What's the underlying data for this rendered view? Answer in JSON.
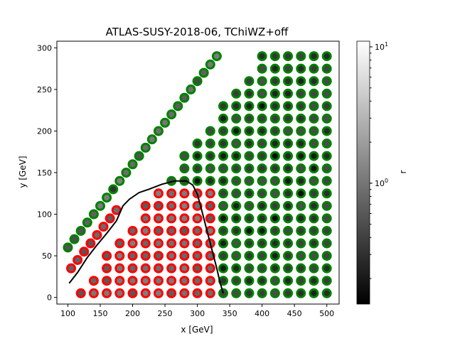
{
  "chart_data": {
    "type": "scatter",
    "title": "ATLAS-SUSY-2018-06, TChiWZ+off",
    "xlabel": "x [GeV]",
    "ylabel": "y [GeV]",
    "xlim": [
      83,
      519
    ],
    "ylim": [
      -8,
      308
    ],
    "xticks": [
      100,
      150,
      200,
      250,
      300,
      350,
      400,
      450,
      500
    ],
    "yticks": [
      0,
      50,
      100,
      150,
      200,
      250,
      300
    ],
    "grid": false,
    "colorbar": {
      "label": "r",
      "scale": "log",
      "range": [
        0.13,
        11
      ],
      "ticks": [
        {
          "value": 1,
          "label": "10^0"
        },
        {
          "value": 10,
          "label": "10^1"
        }
      ],
      "colormap": "gray",
      "colors": [
        "#000000",
        "#ffffff"
      ]
    },
    "edge_colors": {
      "excluded": "#ff0000",
      "allowed": "#008000"
    },
    "status_legend": {
      "excluded": "red ring",
      "allowed": "green ring"
    },
    "exclusion_curve": {
      "color": "#000000",
      "x": [
        102,
        115,
        130,
        145,
        160,
        175,
        185,
        195,
        210,
        225,
        245,
        265,
        283,
        293,
        300,
        305,
        310,
        315,
        320,
        325,
        330,
        335,
        340
      ],
      "y": [
        17,
        30,
        48,
        63,
        77,
        92,
        110,
        118,
        126,
        130,
        136,
        140,
        140,
        135,
        124,
        110,
        95,
        80,
        65,
        50,
        35,
        18,
        5
      ]
    },
    "points": {
      "grid_x": [
        120,
        140,
        160,
        180,
        200,
        220,
        240,
        260,
        280,
        300,
        320,
        340,
        360,
        380,
        400,
        420,
        440,
        460,
        480,
        500
      ],
      "grid_y": [
        5,
        20,
        35,
        50,
        65,
        80,
        95,
        110,
        125,
        140,
        155,
        170,
        185,
        200,
        215,
        230,
        245,
        260,
        275,
        290
      ],
      "exclusion_boundary": "x < 340 and y < 140 excluded",
      "diagonal_band": {
        "x_range": [
          100,
          330
        ],
        "offset_from_diagonal": [
          40,
          70
        ],
        "r_range": [
          0.3,
          1.2
        ]
      },
      "r_range": [
        0.15,
        1.3
      ]
    }
  }
}
